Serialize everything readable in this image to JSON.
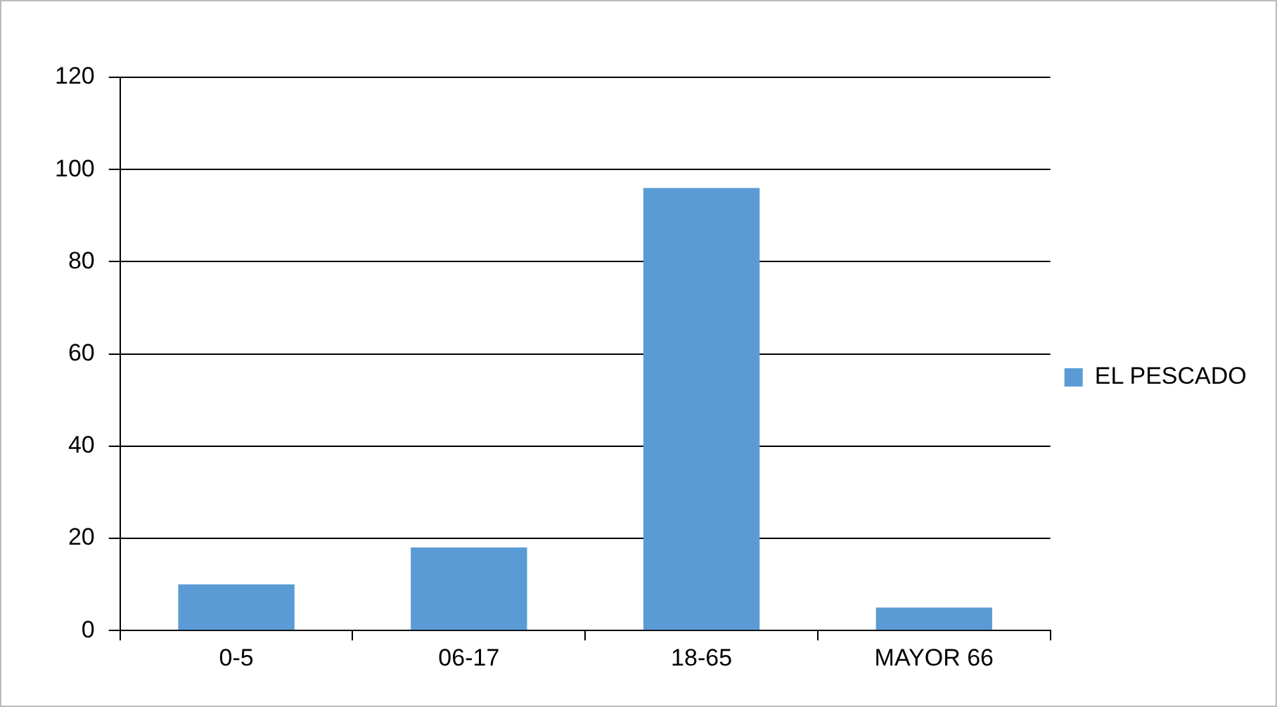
{
  "chart_data": {
    "type": "bar",
    "categories": [
      "0-5",
      "06-17",
      "18-65",
      "MAYOR 66"
    ],
    "series": [
      {
        "name": "EL PESCADO",
        "color": "#5b9bd5",
        "values": [
          10,
          18,
          96,
          5
        ]
      }
    ],
    "ylim": [
      0,
      120
    ],
    "yticks": [
      0,
      20,
      40,
      60,
      80,
      100,
      120
    ],
    "grid": "y",
    "legend": "right"
  }
}
